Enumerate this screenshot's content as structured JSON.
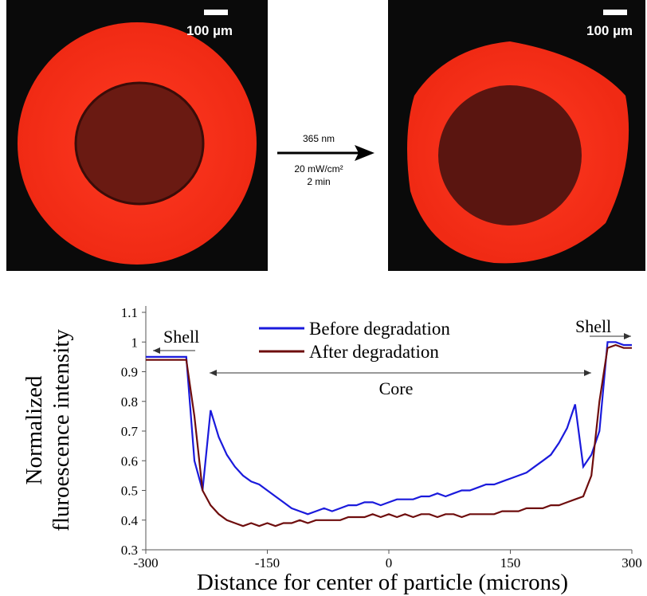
{
  "figure": {
    "scale_bar_left": "100 µm",
    "scale_bar_right": "100 µm",
    "arrow_labels": [
      "365 nm",
      "20 mW/cm²",
      "2 min"
    ]
  },
  "chart_data": {
    "type": "line",
    "xlabel": "Distance for center of particle (microns)",
    "ylabel": [
      "Normalized",
      "fluroescence intensity"
    ],
    "annotations": {
      "shell_left": "Shell",
      "shell_right": "Shell",
      "core": "Core"
    },
    "x": [
      -300,
      -290,
      -280,
      -270,
      -260,
      -250,
      -240,
      -230,
      -220,
      -210,
      -200,
      -190,
      -180,
      -170,
      -160,
      -150,
      -140,
      -130,
      -120,
      -110,
      -100,
      -90,
      -80,
      -70,
      -60,
      -50,
      -40,
      -30,
      -20,
      -10,
      0,
      10,
      20,
      30,
      40,
      50,
      60,
      70,
      80,
      90,
      100,
      110,
      120,
      130,
      140,
      150,
      160,
      170,
      180,
      190,
      200,
      210,
      220,
      230,
      240,
      250,
      260,
      270,
      280,
      290,
      300
    ],
    "series": [
      {
        "name": "Before degradation",
        "color": "#1a1adc",
        "values": [
          0.95,
          0.95,
          0.95,
          0.95,
          0.95,
          0.95,
          0.6,
          0.5,
          0.77,
          0.68,
          0.62,
          0.58,
          0.55,
          0.53,
          0.52,
          0.5,
          0.48,
          0.46,
          0.44,
          0.43,
          0.42,
          0.43,
          0.44,
          0.43,
          0.44,
          0.45,
          0.45,
          0.46,
          0.46,
          0.45,
          0.46,
          0.47,
          0.47,
          0.47,
          0.48,
          0.48,
          0.49,
          0.48,
          0.49,
          0.5,
          0.5,
          0.51,
          0.52,
          0.52,
          0.53,
          0.54,
          0.55,
          0.56,
          0.58,
          0.6,
          0.62,
          0.66,
          0.71,
          0.79,
          0.58,
          0.62,
          0.7,
          1.0,
          1.0,
          0.99,
          0.99
        ]
      },
      {
        "name": "After degradation",
        "color": "#6e0d0d",
        "values": [
          0.94,
          0.94,
          0.94,
          0.94,
          0.94,
          0.94,
          0.75,
          0.5,
          0.45,
          0.42,
          0.4,
          0.39,
          0.38,
          0.39,
          0.38,
          0.39,
          0.38,
          0.39,
          0.39,
          0.4,
          0.39,
          0.4,
          0.4,
          0.4,
          0.4,
          0.41,
          0.41,
          0.41,
          0.42,
          0.41,
          0.42,
          0.41,
          0.42,
          0.41,
          0.42,
          0.42,
          0.41,
          0.42,
          0.42,
          0.41,
          0.42,
          0.42,
          0.42,
          0.42,
          0.43,
          0.43,
          0.43,
          0.44,
          0.44,
          0.44,
          0.45,
          0.45,
          0.46,
          0.47,
          0.48,
          0.55,
          0.8,
          0.98,
          0.99,
          0.98,
          0.98
        ]
      }
    ],
    "xlim": [
      -300,
      300
    ],
    "xticks": [
      -300,
      -150,
      0,
      150,
      300
    ],
    "ylim": [
      0.3,
      1.1
    ],
    "yticks": [
      0.3,
      0.4,
      0.5,
      0.6,
      0.7,
      0.8,
      0.9,
      1,
      1.1
    ],
    "grid": false
  }
}
